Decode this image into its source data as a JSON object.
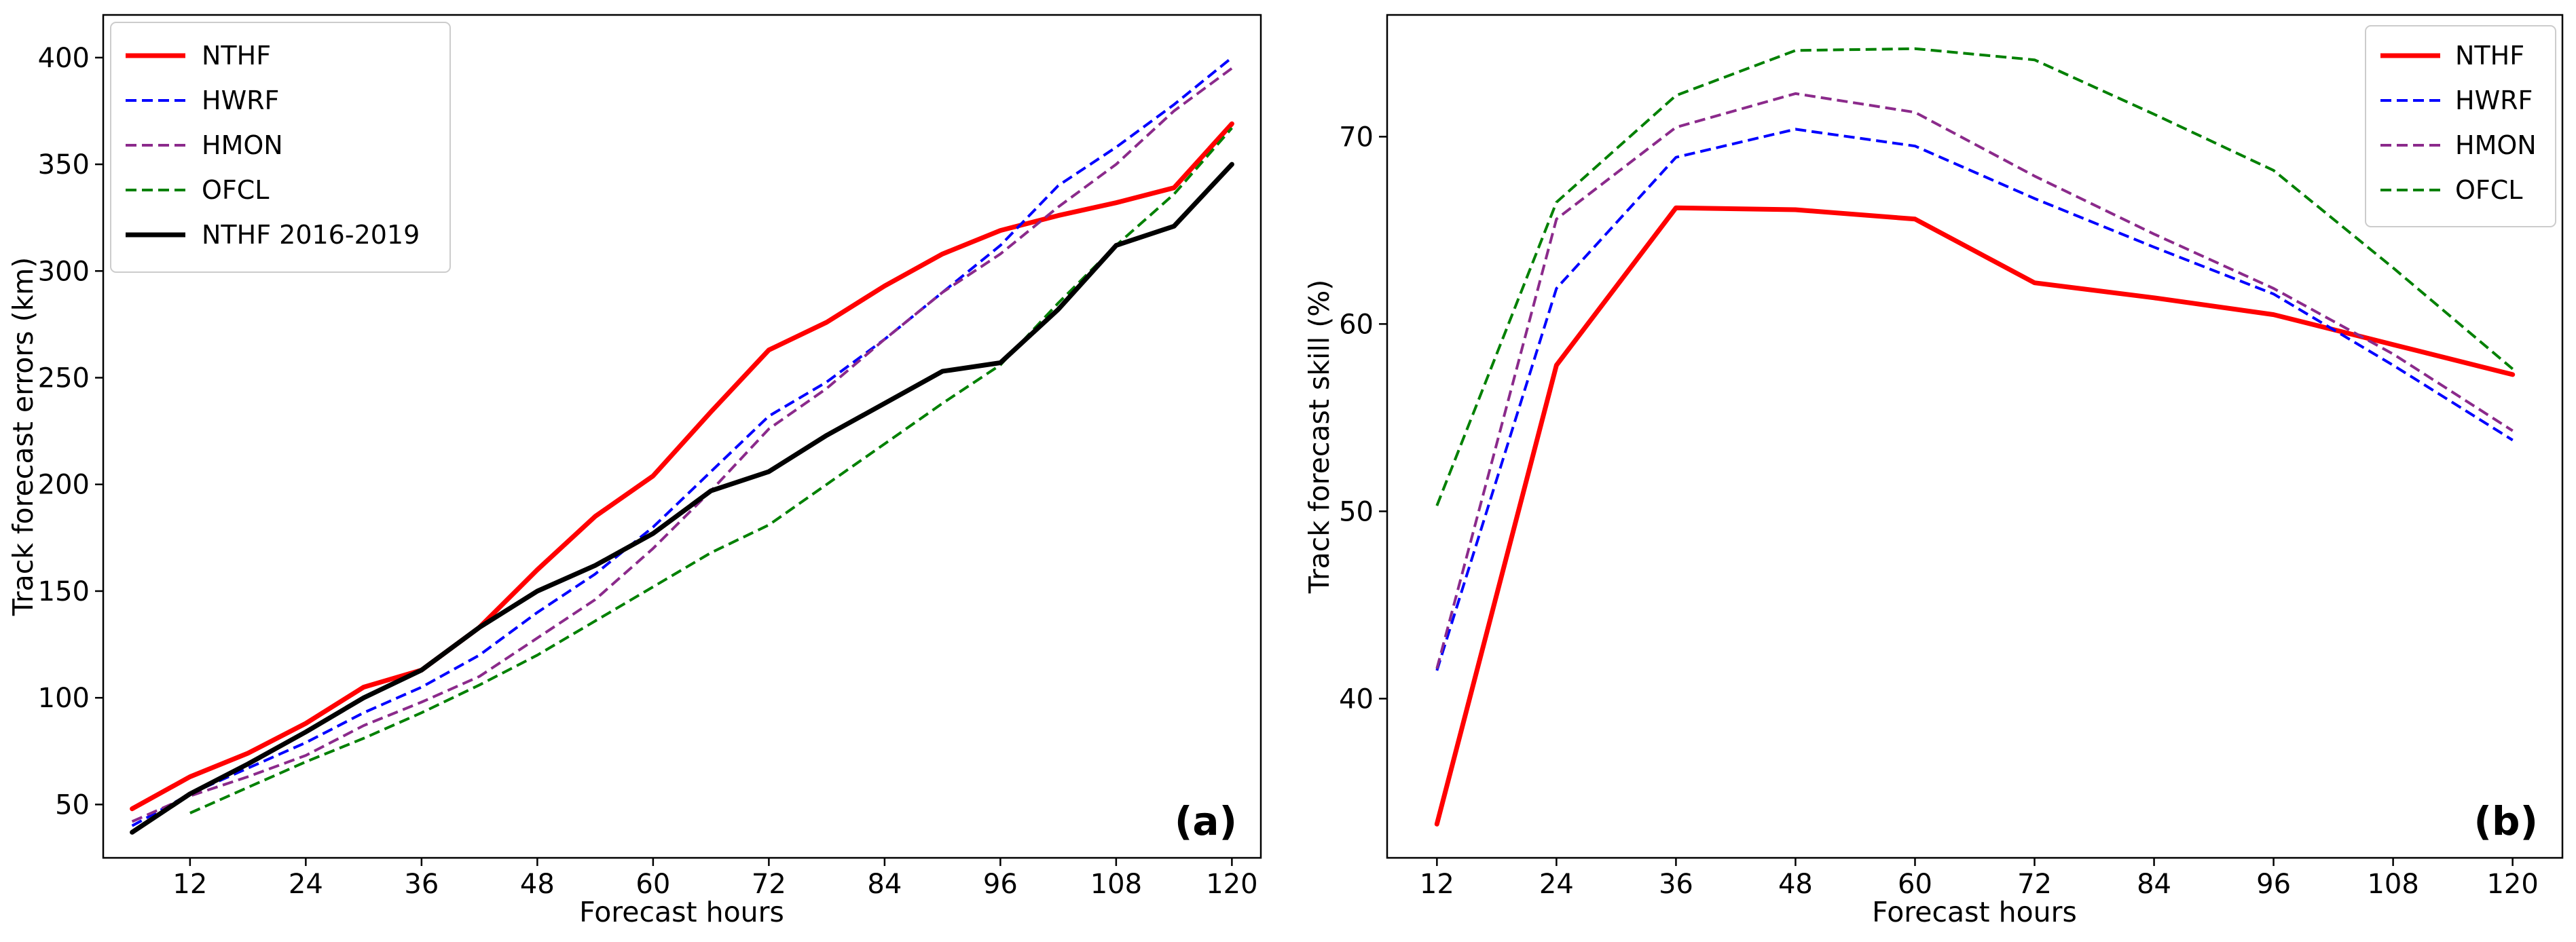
{
  "chart_data": [
    {
      "type": "line",
      "panel_label": "(a)",
      "xlabel": "Forecast hours",
      "ylabel": "Track forecast errors (km)",
      "xlim": [
        3,
        123
      ],
      "ylim": [
        25,
        420
      ],
      "xticks": [
        12,
        24,
        36,
        48,
        60,
        72,
        84,
        96,
        108,
        120
      ],
      "yticks": [
        50,
        100,
        150,
        200,
        250,
        300,
        350,
        400
      ],
      "legend_position": "top-left",
      "series": [
        {
          "name": "NTHF",
          "color": "#ff0000",
          "style": "solid",
          "width": 7,
          "x": [
            6,
            12,
            18,
            24,
            30,
            36,
            42,
            48,
            54,
            60,
            66,
            72,
            78,
            84,
            90,
            96,
            102,
            108,
            114,
            120
          ],
          "y": [
            48,
            63,
            74,
            88,
            105,
            113,
            133,
            160,
            185,
            204,
            234,
            263,
            276,
            293,
            308,
            319,
            326,
            332,
            339,
            369
          ]
        },
        {
          "name": "HWRF",
          "color": "#0000ff",
          "style": "dashed",
          "width": 4,
          "x": [
            6,
            12,
            18,
            24,
            30,
            36,
            42,
            48,
            54,
            60,
            66,
            72,
            78,
            84,
            90,
            96,
            102,
            108,
            114,
            120
          ],
          "y": [
            40,
            55,
            67,
            79,
            93,
            105,
            120,
            140,
            158,
            180,
            206,
            232,
            248,
            268,
            290,
            312,
            340,
            358,
            378,
            400
          ]
        },
        {
          "name": "HMON",
          "color": "#8b2a8b",
          "style": "dashed",
          "width": 4,
          "x": [
            6,
            12,
            18,
            24,
            30,
            36,
            42,
            48,
            54,
            60,
            66,
            72,
            78,
            84,
            90,
            96,
            102,
            108,
            114,
            120
          ],
          "y": [
            42,
            54,
            63,
            73,
            87,
            98,
            110,
            128,
            146,
            170,
            197,
            226,
            245,
            268,
            290,
            308,
            330,
            350,
            375,
            395
          ]
        },
        {
          "name": "OFCL",
          "color": "#008000",
          "style": "dashed",
          "width": 4,
          "x": [
            12,
            18,
            24,
            30,
            36,
            42,
            48,
            54,
            60,
            66,
            72,
            78,
            84,
            90,
            96,
            102,
            108,
            114,
            120
          ],
          "y": [
            46,
            58,
            70,
            81,
            93,
            106,
            120,
            136,
            152,
            168,
            181,
            200,
            219,
            238,
            256,
            285,
            312,
            336,
            367
          ]
        },
        {
          "name": "NTHF 2016-2019",
          "color": "#000000",
          "style": "solid",
          "width": 7,
          "x": [
            6,
            12,
            18,
            24,
            30,
            36,
            42,
            48,
            54,
            60,
            66,
            72,
            78,
            84,
            90,
            96,
            102,
            108,
            114,
            120
          ],
          "y": [
            37,
            55,
            69,
            84,
            100,
            113,
            133,
            150,
            162,
            177,
            197,
            206,
            223,
            238,
            253,
            257,
            282,
            312,
            321,
            350
          ]
        }
      ]
    },
    {
      "type": "line",
      "panel_label": "(b)",
      "xlabel": "Forecast hours",
      "ylabel": "Track forecast skill (%)",
      "xlim": [
        7,
        125
      ],
      "ylim": [
        31.5,
        76.5
      ],
      "xticks": [
        12,
        24,
        36,
        48,
        60,
        72,
        84,
        96,
        108,
        120
      ],
      "yticks": [
        40,
        50,
        60,
        70
      ],
      "legend_position": "top-right",
      "series": [
        {
          "name": "NTHF",
          "color": "#ff0000",
          "style": "solid",
          "width": 7,
          "x": [
            12,
            24,
            36,
            48,
            60,
            72,
            84,
            96,
            108,
            120
          ],
          "y": [
            33.3,
            57.8,
            66.2,
            66.1,
            65.6,
            62.2,
            61.4,
            60.5,
            58.9,
            57.3
          ]
        },
        {
          "name": "HWRF",
          "color": "#0000ff",
          "style": "dashed",
          "width": 4,
          "x": [
            12,
            24,
            36,
            48,
            60,
            72,
            84,
            96,
            108,
            120
          ],
          "y": [
            41.5,
            61.9,
            68.9,
            70.4,
            69.5,
            66.7,
            64.1,
            61.6,
            57.8,
            53.8
          ]
        },
        {
          "name": "HMON",
          "color": "#8b2a8b",
          "style": "dashed",
          "width": 4,
          "x": [
            12,
            24,
            36,
            48,
            60,
            72,
            84,
            96,
            108,
            120
          ],
          "y": [
            41.6,
            65.6,
            70.5,
            72.3,
            71.3,
            67.9,
            64.8,
            61.9,
            58.4,
            54.3
          ]
        },
        {
          "name": "OFCL",
          "color": "#008000",
          "style": "dashed",
          "width": 4,
          "x": [
            12,
            24,
            36,
            48,
            60,
            72,
            84,
            96,
            108,
            120
          ],
          "y": [
            50.3,
            66.5,
            72.2,
            74.6,
            74.7,
            74.1,
            71.2,
            68.2,
            63.0,
            57.6
          ]
        }
      ]
    }
  ]
}
